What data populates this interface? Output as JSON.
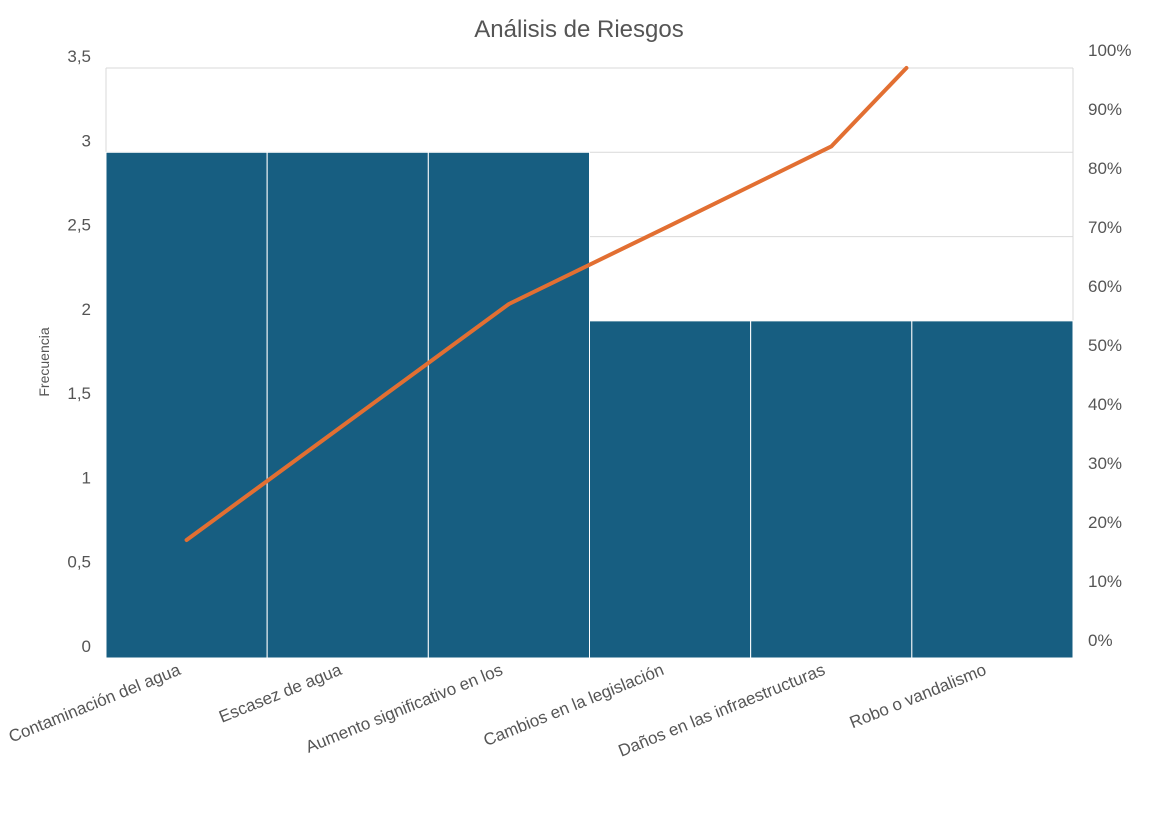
{
  "chart_data": {
    "type": "bar",
    "title": "Análisis de Riesgos",
    "ylabel": "Frecuencia",
    "ylim": [
      0,
      3.5
    ],
    "y_ticks": [
      "0",
      "0,5",
      "1",
      "1,5",
      "2",
      "2,5",
      "3",
      "3,5"
    ],
    "y2lim": [
      0,
      100
    ],
    "y2_ticks": [
      "0%",
      "10%",
      "20%",
      "30%",
      "40%",
      "50%",
      "60%",
      "70%",
      "80%",
      "90%",
      "100%"
    ],
    "categories": [
      "Contaminación del agua",
      "Escasez de agua",
      "Aumento significativo en los",
      "Cambios en la legislación",
      "Daños en las infraestructuras",
      "Robo o vandalismo"
    ],
    "series": [
      {
        "type": "bar",
        "values": [
          3,
          3,
          3,
          2,
          2,
          2
        ]
      },
      {
        "type": "line",
        "axis": "secondary",
        "values": [
          20,
          40,
          60,
          73.3,
          86.7,
          100
        ]
      }
    ],
    "colors": {
      "bar": "#175e81",
      "line": "#e26f32",
      "grid": "#d9d9d9",
      "text": "#555555"
    },
    "grid": true
  }
}
